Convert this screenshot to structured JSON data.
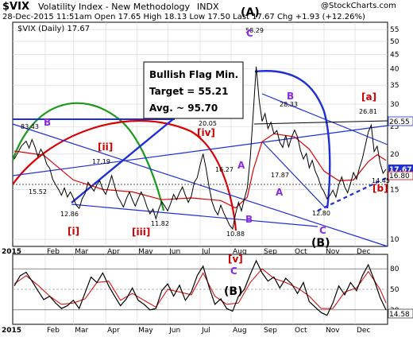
{
  "header": {
    "symbol": "$VIX",
    "name": "Volatility Index - New Methodology",
    "exchange": "INDX",
    "stats": "28-Dec-2015 11:51am   Open 17.65   High 18.13   Low 17.50   Last 17.67   Chg +1.93 (+12.26%)",
    "series_label": "$VIX (Daily) 17.67",
    "watermark": "@StockCharts.com"
  },
  "colors": {
    "price": "#000000",
    "ma": "#dd0000",
    "blue": "#1f2fd6",
    "green": "#1a9a1a",
    "red_label": "#d00000",
    "purple": "#8a2be2",
    "grid": "#d6d6d6",
    "last_bg": "#1f2fd6"
  },
  "annotation": {
    "line1": "Bullish Flag Min.",
    "line2": "Target = 55.21",
    "line3": "Avg. ~ 95.70"
  },
  "chart_data": [
    {
      "type": "line",
      "title": "$VIX (Daily) 17.67",
      "scale": "log",
      "ylim": [
        9.5,
        58
      ],
      "y_ticks": [
        10,
        15,
        20,
        25,
        30,
        35,
        40,
        45,
        50,
        55
      ],
      "x_labels": [
        "2015",
        "Feb",
        "Mar",
        "Apr",
        "May",
        "Jun",
        "Jul",
        "Aug",
        "Sep",
        "Oct",
        "Nov",
        "Dec"
      ],
      "series": [
        {
          "values": [
            [
              0,
              19.2
            ],
            [
              3,
              20.5
            ],
            [
              5,
              21.4
            ],
            [
              8,
              22.2
            ],
            [
              10,
              21.0
            ],
            [
              12,
              22.5
            ],
            [
              14,
              21.2
            ],
            [
              16,
              19.6
            ],
            [
              18,
              20.8
            ],
            [
              20,
              19.9
            ],
            [
              22,
              18.4
            ],
            [
              24,
              17.8
            ],
            [
              26,
              16.3
            ],
            [
              28,
              15.6
            ],
            [
              30,
              15.0
            ],
            [
              32,
              14.3
            ],
            [
              34,
              15.2
            ],
            [
              36,
              14.1
            ],
            [
              38,
              14.7
            ],
            [
              40,
              14.0
            ],
            [
              42,
              13.2
            ],
            [
              44,
              12.86
            ],
            [
              46,
              13.9
            ],
            [
              48,
              14.5
            ],
            [
              50,
              15.9
            ],
            [
              52,
              15.3
            ],
            [
              54,
              14.8
            ],
            [
              56,
              15.6
            ],
            [
              58,
              16.1
            ],
            [
              60,
              15.0
            ],
            [
              62,
              14.4
            ],
            [
              64,
              15.5
            ],
            [
              66,
              16.8
            ],
            [
              68,
              15.4
            ],
            [
              70,
              14.2
            ],
            [
              72,
              13.6
            ],
            [
              74,
              13.0
            ],
            [
              76,
              13.9
            ],
            [
              78,
              14.7
            ],
            [
              80,
              13.8
            ],
            [
              82,
              13.1
            ],
            [
              84,
              13.9
            ],
            [
              86,
              14.7
            ],
            [
              88,
              14.0
            ],
            [
              90,
              13.0
            ],
            [
              92,
              12.3
            ],
            [
              94,
              12.8
            ],
            [
              96,
              11.82
            ],
            [
              98,
              12.8
            ],
            [
              100,
              13.6
            ],
            [
              102,
              13.1
            ],
            [
              104,
              12.6
            ],
            [
              106,
              13.4
            ],
            [
              108,
              14.4
            ],
            [
              110,
              13.8
            ],
            [
              112,
              14.6
            ],
            [
              114,
              15.3
            ],
            [
              116,
              14.3
            ],
            [
              118,
              13.5
            ],
            [
              120,
              14.2
            ],
            [
              122,
              15.9
            ],
            [
              124,
              16.5
            ],
            [
              126,
              18.3
            ],
            [
              128,
              20.05
            ],
            [
              130,
              17.8
            ],
            [
              132,
              15.4
            ],
            [
              134,
              13.6
            ],
            [
              136,
              12.7
            ],
            [
              138,
              12.2
            ],
            [
              140,
              13.2
            ],
            [
              142,
              12.4
            ],
            [
              144,
              11.8
            ],
            [
              146,
              11.2
            ],
            [
              148,
              10.88
            ],
            [
              150,
              12.3
            ],
            [
              152,
              13.5
            ],
            [
              154,
              12.6
            ],
            [
              156,
              13.9
            ],
            [
              158,
              15.2
            ],
            [
              160,
              19.4
            ],
            [
              162,
              28.0
            ],
            [
              164,
              40.7
            ],
            [
              166,
              31.0
            ],
            [
              168,
              26.1
            ],
            [
              170,
              27.8
            ],
            [
              172,
              24.6
            ],
            [
              174,
              25.9
            ],
            [
              176,
              23.6
            ],
            [
              178,
              24.2
            ],
            [
              180,
              22.0
            ],
            [
              182,
              21.1
            ],
            [
              184,
              23.3
            ],
            [
              186,
              21.2
            ],
            [
              188,
              22.9
            ],
            [
              190,
              24.3
            ],
            [
              192,
              23.0
            ],
            [
              194,
              20.6
            ],
            [
              196,
              19.2
            ],
            [
              198,
              20.1
            ],
            [
              200,
              17.87
            ],
            [
              202,
              19.0
            ],
            [
              204,
              17.4
            ],
            [
              206,
              16.5
            ],
            [
              208,
              15.3
            ],
            [
              210,
              14.7
            ],
            [
              212,
              13.9
            ],
            [
              214,
              14.3
            ],
            [
              216,
              14.9
            ],
            [
              218,
              14.1
            ],
            [
              220,
              15.6
            ],
            [
              222,
              16.6
            ],
            [
              224,
              15.3
            ],
            [
              226,
              14.6
            ],
            [
              228,
              15.8
            ],
            [
              230,
              17.2
            ],
            [
              232,
              16.3
            ],
            [
              234,
              17.9
            ],
            [
              236,
              19.3
            ],
            [
              238,
              21.5
            ],
            [
              240,
              23.9
            ],
            [
              242,
              25.3
            ],
            [
              244,
              20.4
            ],
            [
              246,
              21.3
            ],
            [
              248,
              18.6
            ],
            [
              250,
              17.1
            ],
            [
              252,
              17.67
            ]
          ]
        },
        {
          "name": "MA",
          "values": [
            [
              0,
              20.5
            ],
            [
              20,
              19.8
            ],
            [
              40,
              16.2
            ],
            [
              60,
              15.0
            ],
            [
              80,
              14.7
            ],
            [
              100,
              13.8
            ],
            [
              120,
              14.0
            ],
            [
              140,
              13.7
            ],
            [
              150,
              12.9
            ],
            [
              158,
              14.1
            ],
            [
              162,
              17.6
            ],
            [
              168,
              22.1
            ],
            [
              176,
              23.6
            ],
            [
              190,
              23.0
            ],
            [
              200,
              20.8
            ],
            [
              210,
              17.4
            ],
            [
              220,
              16.1
            ],
            [
              230,
              16.2
            ],
            [
              240,
              18.8
            ],
            [
              246,
              19.9
            ],
            [
              252,
              19.0
            ]
          ]
        }
      ],
      "labels": [
        "83.43",
        "15.52",
        "12.86",
        "17.19",
        "11.82",
        "20.05",
        "16.27",
        "10.88",
        "58.29",
        "28.33",
        "17.87",
        "12.80",
        "26.81",
        "14.45",
        "26.55",
        "16.80",
        "17.67"
      ]
    },
    {
      "type": "line",
      "title": "",
      "ylim": [
        0,
        100
      ],
      "y_ticks": [
        20,
        50,
        80
      ],
      "x_labels": [
        "2015",
        "Feb",
        "Mar",
        "Apr",
        "May",
        "Jun",
        "Jul",
        "Aug",
        "Sep",
        "Oct",
        "Nov",
        "Dec"
      ],
      "series": [
        {
          "values": [
            [
              0,
              55
            ],
            [
              4,
              70
            ],
            [
              8,
              75
            ],
            [
              12,
              62
            ],
            [
              16,
              48
            ],
            [
              20,
              35
            ],
            [
              24,
              40
            ],
            [
              28,
              30
            ],
            [
              32,
              22
            ],
            [
              36,
              26
            ],
            [
              40,
              34
            ],
            [
              44,
              22
            ],
            [
              48,
              45
            ],
            [
              52,
              68
            ],
            [
              56,
              60
            ],
            [
              60,
              74
            ],
            [
              64,
              55
            ],
            [
              68,
              40
            ],
            [
              72,
              26
            ],
            [
              76,
              36
            ],
            [
              80,
              52
            ],
            [
              84,
              34
            ],
            [
              88,
              28
            ],
            [
              92,
              20
            ],
            [
              96,
              22
            ],
            [
              100,
              48
            ],
            [
              104,
              58
            ],
            [
              108,
              40
            ],
            [
              112,
              56
            ],
            [
              116,
              34
            ],
            [
              120,
              46
            ],
            [
              124,
              70
            ],
            [
              128,
              84
            ],
            [
              132,
              54
            ],
            [
              136,
              28
            ],
            [
              140,
              36
            ],
            [
              144,
              22
            ],
            [
              148,
              18
            ],
            [
              152,
              40
            ],
            [
              156,
              50
            ],
            [
              160,
              72
            ],
            [
              164,
              92
            ],
            [
              168,
              74
            ],
            [
              172,
              62
            ],
            [
              176,
              68
            ],
            [
              180,
              52
            ],
            [
              184,
              66
            ],
            [
              188,
              58
            ],
            [
              192,
              44
            ],
            [
              196,
              60
            ],
            [
              200,
              32
            ],
            [
              204,
              24
            ],
            [
              208,
              16
            ],
            [
              212,
              12
            ],
            [
              216,
              30
            ],
            [
              220,
              55
            ],
            [
              224,
              42
            ],
            [
              228,
              60
            ],
            [
              232,
              48
            ],
            [
              236,
              70
            ],
            [
              240,
              86
            ],
            [
              244,
              64
            ],
            [
              248,
              38
            ],
            [
              252,
              20
            ]
          ]
        },
        {
          "name": "signal",
          "values": [
            [
              0,
              58
            ],
            [
              8,
              70
            ],
            [
              16,
              56
            ],
            [
              24,
              40
            ],
            [
              32,
              28
            ],
            [
              40,
              30
            ],
            [
              48,
              36
            ],
            [
              56,
              60
            ],
            [
              64,
              62
            ],
            [
              72,
              34
            ],
            [
              80,
              44
            ],
            [
              88,
              34
            ],
            [
              96,
              24
            ],
            [
              104,
              50
            ],
            [
              112,
              46
            ],
            [
              120,
              42
            ],
            [
              128,
              74
            ],
            [
              136,
              40
            ],
            [
              144,
              28
            ],
            [
              152,
              30
            ],
            [
              160,
              60
            ],
            [
              168,
              80
            ],
            [
              176,
              66
            ],
            [
              184,
              60
            ],
            [
              192,
              52
            ],
            [
              200,
              40
            ],
            [
              208,
              22
            ],
            [
              216,
              22
            ],
            [
              224,
              46
            ],
            [
              232,
              52
            ],
            [
              240,
              76
            ],
            [
              248,
              50
            ],
            [
              252,
              30
            ]
          ]
        }
      ],
      "labels": [
        "14.58"
      ]
    }
  ],
  "wave_labels": [
    {
      "id": "A_paren",
      "text": "(A)"
    },
    {
      "id": "B_top",
      "text": "B"
    },
    {
      "id": "C_top",
      "text": "C"
    },
    {
      "id": "ii",
      "text": "[ii]"
    },
    {
      "id": "i",
      "text": "[i]"
    },
    {
      "id": "iii",
      "text": "[iii]"
    },
    {
      "id": "iv",
      "text": "[iv]"
    },
    {
      "id": "A_mid",
      "text": "A"
    },
    {
      "id": "B_aug",
      "text": "B"
    },
    {
      "id": "B_sep",
      "text": "B"
    },
    {
      "id": "A_oct",
      "text": "A"
    },
    {
      "id": "C_nov",
      "text": "C"
    },
    {
      "id": "B_paren",
      "text": "(B)"
    },
    {
      "id": "a_br",
      "text": "[a]"
    },
    {
      "id": "b_br",
      "text": "[b]"
    },
    {
      "id": "v_br",
      "text": "[v]"
    },
    {
      "id": "C_ind",
      "text": "C"
    },
    {
      "id": "B_ind",
      "text": "(B)"
    }
  ]
}
